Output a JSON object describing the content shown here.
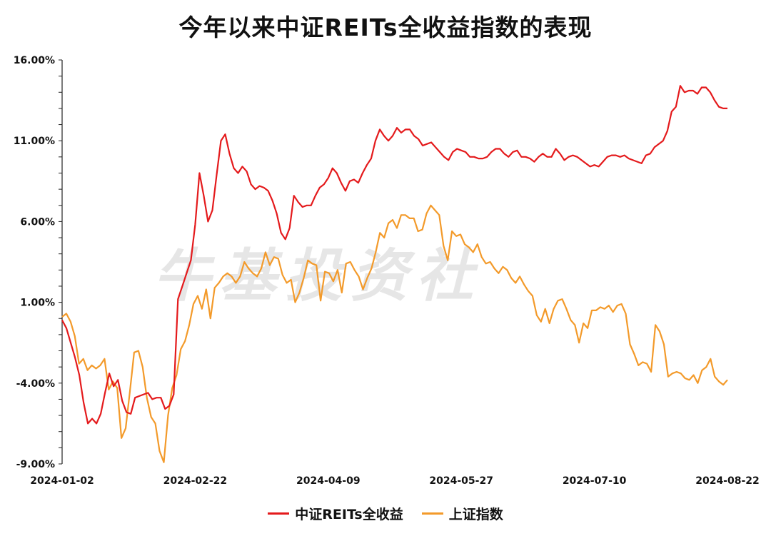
{
  "chart_data": {
    "type": "line",
    "title": "今年以来中证REITs全收益指数的表现",
    "watermark": "牛基投资社",
    "y_ticks": [
      "16.00%",
      "11.00%",
      "6.00%",
      "1.00%",
      "-4.00%",
      "-9.00%"
    ],
    "x_ticks": [
      "2024-01-02",
      "2024-02-22",
      "2024-04-09",
      "2024-05-27",
      "2024-07-10",
      "2024-08-22"
    ],
    "ylim": [
      -9,
      16
    ],
    "grid": false,
    "legend_position": "bottom",
    "series": [
      {
        "name": "中证REITs全收益",
        "color": "#e41a1c",
        "values": [
          -0.1,
          -0.6,
          -1.5,
          -2.4,
          -3.5,
          -5.2,
          -6.5,
          -6.2,
          -6.5,
          -5.9,
          -4.6,
          -3.4,
          -4.2,
          -3.8,
          -5.1,
          -5.8,
          -5.9,
          -4.9,
          -4.8,
          -4.7,
          -4.6,
          -5.0,
          -4.9,
          -4.9,
          -5.6,
          -5.4,
          -4.7,
          1.2,
          2.0,
          2.8,
          3.6,
          5.8,
          9.0,
          7.6,
          6.0,
          6.7,
          8.9,
          11.0,
          11.4,
          10.2,
          9.3,
          9.0,
          9.4,
          9.1,
          8.3,
          8.0,
          8.2,
          8.1,
          7.9,
          7.3,
          6.5,
          5.3,
          4.9,
          5.6,
          7.6,
          7.2,
          6.9,
          7.0,
          7.0,
          7.6,
          8.1,
          8.3,
          8.7,
          9.3,
          9.0,
          8.4,
          7.9,
          8.5,
          8.6,
          8.4,
          9.0,
          9.5,
          9.9,
          11.0,
          11.7,
          11.3,
          11.0,
          11.3,
          11.8,
          11.5,
          11.7,
          11.7,
          11.3,
          11.1,
          10.7,
          10.8,
          10.9,
          10.6,
          10.3,
          10.0,
          9.8,
          10.3,
          10.5,
          10.4,
          10.3,
          10.0,
          10.0,
          9.9,
          9.9,
          10.0,
          10.3,
          10.5,
          10.5,
          10.2,
          10.0,
          10.3,
          10.4,
          10.0,
          10.0,
          9.9,
          9.7,
          10.0,
          10.2,
          10.0,
          10.0,
          10.5,
          10.2,
          9.8,
          10.0,
          10.1,
          10.0,
          9.8,
          9.6,
          9.4,
          9.5,
          9.4,
          9.7,
          10.0,
          10.1,
          10.1,
          10.0,
          10.1,
          9.9,
          9.8,
          9.7,
          9.6,
          10.1,
          10.2,
          10.6,
          10.8,
          11.0,
          11.6,
          12.8,
          13.1,
          14.4,
          14.0,
          14.1,
          14.1,
          13.9,
          14.3,
          14.3,
          14.0,
          13.5,
          13.1,
          13.0,
          13.0
        ]
      },
      {
        "name": "上证指数",
        "color": "#f39a2a",
        "values": [
          0.1,
          0.3,
          -0.2,
          -1.1,
          -2.8,
          -2.5,
          -3.2,
          -2.9,
          -3.1,
          -2.9,
          -2.5,
          -4.4,
          -3.9,
          -4.3,
          -7.4,
          -6.8,
          -4.5,
          -2.1,
          -2.0,
          -3.0,
          -4.9,
          -6.1,
          -6.5,
          -8.2,
          -8.9,
          -6.0,
          -4.3,
          -3.5,
          -1.9,
          -1.4,
          -0.4,
          0.9,
          1.4,
          0.6,
          1.8,
          0.0,
          1.9,
          2.2,
          2.6,
          2.8,
          2.6,
          2.2,
          2.6,
          3.5,
          3.1,
          2.8,
          2.6,
          3.1,
          4.1,
          3.3,
          3.8,
          3.7,
          2.7,
          2.2,
          2.4,
          1.0,
          1.6,
          2.5,
          3.6,
          3.4,
          3.3,
          1.1,
          2.9,
          2.8,
          2.3,
          3.0,
          1.6,
          3.4,
          3.5,
          3.0,
          2.6,
          1.8,
          2.5,
          3.1,
          4.1,
          5.3,
          5.0,
          5.9,
          6.1,
          5.6,
          6.4,
          6.4,
          6.2,
          6.2,
          5.4,
          5.5,
          6.5,
          7.0,
          6.7,
          6.4,
          4.5,
          3.6,
          5.4,
          5.1,
          5.2,
          4.6,
          4.4,
          4.1,
          4.6,
          3.8,
          3.4,
          3.5,
          3.1,
          2.8,
          3.2,
          3.0,
          2.5,
          2.2,
          2.6,
          2.1,
          1.7,
          1.4,
          0.2,
          -0.2,
          0.6,
          -0.3,
          0.6,
          1.1,
          1.2,
          0.6,
          -0.1,
          -0.4,
          -1.5,
          -0.3,
          -0.6,
          0.5,
          0.5,
          0.7,
          0.6,
          0.8,
          0.4,
          0.8,
          0.9,
          0.3,
          -1.6,
          -2.2,
          -2.9,
          -2.7,
          -2.8,
          -3.3,
          -0.4,
          -0.8,
          -1.6,
          -3.6,
          -3.4,
          -3.3,
          -3.4,
          -3.7,
          -3.8,
          -3.5,
          -4.0,
          -3.2,
          -3.0,
          -2.5,
          -3.6,
          -3.9,
          -4.1,
          -3.8
        ]
      }
    ]
  }
}
